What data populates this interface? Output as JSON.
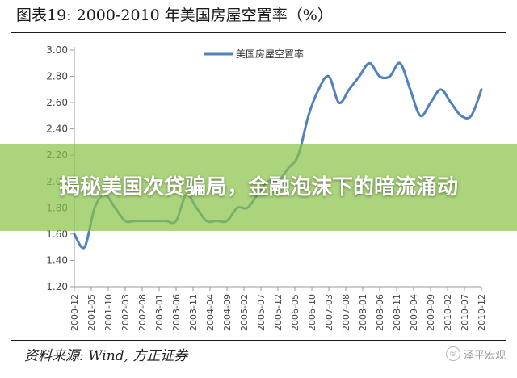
{
  "figure_title": "图表19:    2000-2010 年美国房屋空置率（%）",
  "source": "资料来源: Wind, 方正证券",
  "banner": {
    "headline": "揭秘美国次贷骗局，金融泡沫下的暗流涌动"
  },
  "watermark": {
    "text": "泽平宏观",
    "icon": "wechat-icon"
  },
  "colors": {
    "series_line": "#4f81bd",
    "axis": "#9a9a9a",
    "banner": "#8bc34a"
  },
  "chart_data": {
    "type": "line",
    "grid": false,
    "legend_position": "top-center",
    "ylim": [
      1.2,
      3.0
    ],
    "y_ticks": [
      "1.20",
      "1.40",
      "1.60",
      "1.80",
      "2.00",
      "2.20",
      "2.40",
      "2.60",
      "2.80",
      "3.00"
    ],
    "x_tick_labels": [
      "2000-12",
      "2001-05",
      "2001-10",
      "2002-03",
      "2002-08",
      "2003-01",
      "2003-06",
      "2003-11",
      "2004-04",
      "2004-09",
      "2005-02",
      "2005-07",
      "2005-12",
      "2006-05",
      "2006-10",
      "2007-03",
      "2007-08",
      "2008-01",
      "2008-06",
      "2008-11",
      "2009-04",
      "2009-09",
      "2010-02",
      "2010-07",
      "2010-12"
    ],
    "series": [
      {
        "name": "美国房屋空置率",
        "x": [
          "2000-12",
          "2001-03",
          "2001-06",
          "2001-09",
          "2001-12",
          "2002-03",
          "2002-06",
          "2002-09",
          "2002-12",
          "2003-03",
          "2003-06",
          "2003-09",
          "2003-12",
          "2004-03",
          "2004-06",
          "2004-09",
          "2004-12",
          "2005-03",
          "2005-06",
          "2005-09",
          "2005-12",
          "2006-03",
          "2006-06",
          "2006-09",
          "2006-12",
          "2007-03",
          "2007-06",
          "2007-09",
          "2007-12",
          "2008-03",
          "2008-06",
          "2008-09",
          "2008-12",
          "2009-03",
          "2009-06",
          "2009-09",
          "2009-12",
          "2010-03",
          "2010-06",
          "2010-09",
          "2010-12"
        ],
        "values": [
          1.6,
          1.5,
          1.8,
          1.9,
          1.8,
          1.7,
          1.7,
          1.7,
          1.7,
          1.7,
          1.7,
          1.9,
          1.8,
          1.7,
          1.7,
          1.7,
          1.8,
          1.8,
          1.9,
          2.0,
          2.0,
          2.1,
          2.2,
          2.5,
          2.7,
          2.8,
          2.6,
          2.7,
          2.8,
          2.9,
          2.8,
          2.8,
          2.9,
          2.7,
          2.5,
          2.6,
          2.7,
          2.6,
          2.5,
          2.5,
          2.7
        ]
      }
    ]
  }
}
